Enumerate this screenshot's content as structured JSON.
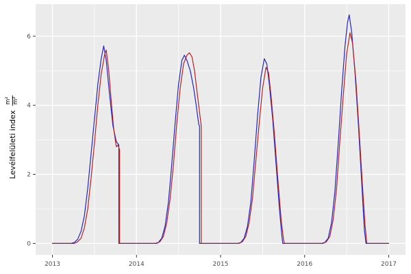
{
  "chart_data": {
    "type": "line",
    "title": "",
    "xlabel": "",
    "ylabel": "Levélfelületi index",
    "ylabel_unit": {
      "numerator": "m²",
      "denominator": "m²"
    },
    "x_domain": [
      2012.8,
      2017.2
    ],
    "y_domain": [
      -0.33,
      6.93
    ],
    "x_major_ticks": [
      2013,
      2014,
      2015,
      2016,
      2017
    ],
    "x_tick_labels": [
      "2013",
      "2014",
      "2015",
      "2016",
      "2017"
    ],
    "x_minor_ticks": [
      2013.5,
      2014.5,
      2015.5,
      2016.5
    ],
    "y_major_ticks": [
      0,
      2,
      4,
      6
    ],
    "y_tick_labels": [
      "0",
      "2",
      "4",
      "6"
    ],
    "y_minor_ticks": [
      1,
      3,
      5
    ],
    "grid": true,
    "legend": "none",
    "panel_bg": "#ebebeb",
    "grid_color": "#ffffff",
    "tick_color": "#333333",
    "tick_label_color": "#4d4d4d",
    "series": [
      {
        "name": "blue",
        "color": "#2222cc",
        "points": [
          [
            2013.0,
            0
          ],
          [
            2013.22,
            0
          ],
          [
            2013.26,
            0.03
          ],
          [
            2013.3,
            0.12
          ],
          [
            2013.34,
            0.35
          ],
          [
            2013.38,
            0.8
          ],
          [
            2013.42,
            1.6
          ],
          [
            2013.46,
            2.6
          ],
          [
            2013.5,
            3.6
          ],
          [
            2013.54,
            4.6
          ],
          [
            2013.58,
            5.35
          ],
          [
            2013.61,
            5.72
          ],
          [
            2013.64,
            5.3
          ],
          [
            2013.68,
            4.3
          ],
          [
            2013.72,
            3.4
          ],
          [
            2013.76,
            2.95
          ],
          [
            2013.79,
            2.85
          ],
          [
            2013.79,
            0
          ],
          [
            2013.95,
            0
          ],
          [
            2014.22,
            0
          ],
          [
            2014.26,
            0.03
          ],
          [
            2014.3,
            0.15
          ],
          [
            2014.34,
            0.5
          ],
          [
            2014.38,
            1.2
          ],
          [
            2014.42,
            2.3
          ],
          [
            2014.46,
            3.5
          ],
          [
            2014.5,
            4.6
          ],
          [
            2014.54,
            5.3
          ],
          [
            2014.57,
            5.45
          ],
          [
            2014.6,
            5.3
          ],
          [
            2014.64,
            5.0
          ],
          [
            2014.68,
            4.5
          ],
          [
            2014.71,
            4.0
          ],
          [
            2014.74,
            3.45
          ],
          [
            2014.75,
            3.4
          ],
          [
            2014.75,
            0
          ],
          [
            2014.95,
            0
          ],
          [
            2015.2,
            0
          ],
          [
            2015.24,
            0.03
          ],
          [
            2015.28,
            0.15
          ],
          [
            2015.32,
            0.5
          ],
          [
            2015.36,
            1.2
          ],
          [
            2015.4,
            2.4
          ],
          [
            2015.44,
            3.7
          ],
          [
            2015.48,
            4.8
          ],
          [
            2015.52,
            5.35
          ],
          [
            2015.55,
            5.2
          ],
          [
            2015.58,
            4.6
          ],
          [
            2015.62,
            3.6
          ],
          [
            2015.66,
            2.3
          ],
          [
            2015.7,
            1.0
          ],
          [
            2015.73,
            0.2
          ],
          [
            2015.74,
            0
          ],
          [
            2015.95,
            0
          ],
          [
            2016.2,
            0
          ],
          [
            2016.24,
            0.03
          ],
          [
            2016.28,
            0.15
          ],
          [
            2016.32,
            0.6
          ],
          [
            2016.36,
            1.5
          ],
          [
            2016.4,
            2.9
          ],
          [
            2016.44,
            4.4
          ],
          [
            2016.48,
            5.7
          ],
          [
            2016.51,
            6.4
          ],
          [
            2016.53,
            6.62
          ],
          [
            2016.56,
            6.1
          ],
          [
            2016.6,
            4.9
          ],
          [
            2016.64,
            3.4
          ],
          [
            2016.68,
            1.7
          ],
          [
            2016.71,
            0.4
          ],
          [
            2016.73,
            0
          ],
          [
            2017.0,
            0
          ]
        ]
      },
      {
        "name": "red",
        "color": "#b22222",
        "points": [
          [
            2013.0,
            0
          ],
          [
            2013.26,
            0
          ],
          [
            2013.3,
            0.05
          ],
          [
            2013.34,
            0.15
          ],
          [
            2013.38,
            0.45
          ],
          [
            2013.42,
            1.0
          ],
          [
            2013.46,
            1.9
          ],
          [
            2013.5,
            2.9
          ],
          [
            2013.54,
            4.0
          ],
          [
            2013.58,
            4.9
          ],
          [
            2013.62,
            5.45
          ],
          [
            2013.64,
            5.6
          ],
          [
            2013.67,
            5.0
          ],
          [
            2013.7,
            4.1
          ],
          [
            2013.73,
            3.3
          ],
          [
            2013.76,
            2.8
          ],
          [
            2013.78,
            2.85
          ],
          [
            2013.8,
            2.7
          ],
          [
            2013.8,
            0
          ],
          [
            2013.95,
            0
          ],
          [
            2014.24,
            0
          ],
          [
            2014.28,
            0.05
          ],
          [
            2014.32,
            0.2
          ],
          [
            2014.36,
            0.6
          ],
          [
            2014.4,
            1.3
          ],
          [
            2014.44,
            2.3
          ],
          [
            2014.48,
            3.5
          ],
          [
            2014.52,
            4.5
          ],
          [
            2014.56,
            5.2
          ],
          [
            2014.6,
            5.45
          ],
          [
            2014.63,
            5.52
          ],
          [
            2014.66,
            5.4
          ],
          [
            2014.69,
            5.0
          ],
          [
            2014.72,
            4.4
          ],
          [
            2014.75,
            3.8
          ],
          [
            2014.77,
            3.4
          ],
          [
            2014.77,
            0
          ],
          [
            2014.95,
            0
          ],
          [
            2015.22,
            0
          ],
          [
            2015.26,
            0.05
          ],
          [
            2015.3,
            0.2
          ],
          [
            2015.34,
            0.6
          ],
          [
            2015.38,
            1.3
          ],
          [
            2015.42,
            2.4
          ],
          [
            2015.46,
            3.5
          ],
          [
            2015.5,
            4.5
          ],
          [
            2015.54,
            5.1
          ],
          [
            2015.57,
            4.95
          ],
          [
            2015.6,
            4.3
          ],
          [
            2015.64,
            3.2
          ],
          [
            2015.68,
            1.9
          ],
          [
            2015.72,
            0.7
          ],
          [
            2015.75,
            0.1
          ],
          [
            2015.76,
            0
          ],
          [
            2015.95,
            0
          ],
          [
            2016.22,
            0
          ],
          [
            2016.26,
            0.05
          ],
          [
            2016.3,
            0.2
          ],
          [
            2016.34,
            0.7
          ],
          [
            2016.38,
            1.6
          ],
          [
            2016.42,
            3.0
          ],
          [
            2016.46,
            4.3
          ],
          [
            2016.5,
            5.5
          ],
          [
            2016.54,
            6.1
          ],
          [
            2016.57,
            5.8
          ],
          [
            2016.61,
            4.7
          ],
          [
            2016.65,
            3.2
          ],
          [
            2016.69,
            1.6
          ],
          [
            2016.72,
            0.5
          ],
          [
            2016.74,
            0
          ],
          [
            2017.0,
            0
          ]
        ]
      }
    ]
  }
}
